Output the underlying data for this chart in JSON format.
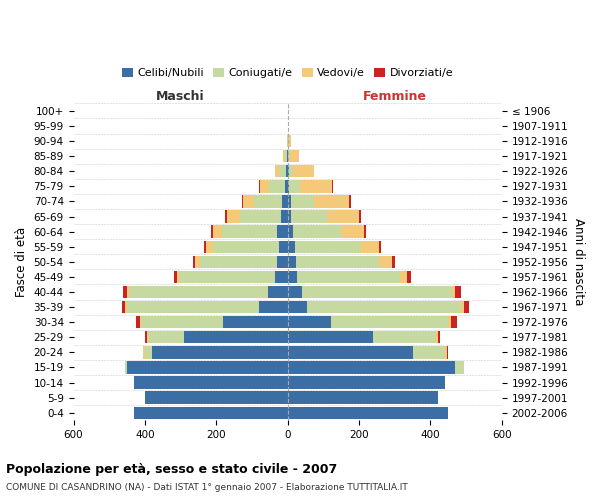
{
  "age_groups": [
    "0-4",
    "5-9",
    "10-14",
    "15-19",
    "20-24",
    "25-29",
    "30-34",
    "35-39",
    "40-44",
    "45-49",
    "50-54",
    "55-59",
    "60-64",
    "65-69",
    "70-74",
    "75-79",
    "80-84",
    "85-89",
    "90-94",
    "95-99",
    "100+"
  ],
  "birth_years": [
    "2002-2006",
    "1997-2001",
    "1992-1996",
    "1987-1991",
    "1982-1986",
    "1977-1981",
    "1972-1976",
    "1967-1971",
    "1962-1966",
    "1957-1961",
    "1952-1956",
    "1947-1951",
    "1942-1946",
    "1937-1941",
    "1932-1936",
    "1927-1931",
    "1922-1926",
    "1917-1921",
    "1912-1916",
    "1907-1911",
    "≤ 1906"
  ],
  "colors": {
    "celibe": "#3a6ea5",
    "coniugato": "#c5d9a0",
    "vedovo": "#f5c97a",
    "divorziato": "#cc2222"
  },
  "maschi": {
    "celibe": [
      430,
      400,
      430,
      450,
      380,
      290,
      180,
      80,
      55,
      35,
      30,
      25,
      30,
      20,
      15,
      8,
      5,
      2,
      0,
      0,
      0
    ],
    "coniugato": [
      0,
      0,
      0,
      5,
      20,
      100,
      230,
      370,
      390,
      270,
      215,
      185,
      155,
      115,
      80,
      45,
      18,
      5,
      2,
      0,
      0
    ],
    "vedovo": [
      0,
      0,
      0,
      0,
      5,
      5,
      5,
      5,
      5,
      5,
      15,
      20,
      25,
      35,
      30,
      25,
      12,
      5,
      1,
      0,
      0
    ],
    "divorziato": [
      0,
      0,
      0,
      0,
      0,
      5,
      10,
      10,
      10,
      8,
      5,
      5,
      5,
      5,
      3,
      2,
      0,
      0,
      0,
      0,
      0
    ]
  },
  "femmine": {
    "nubile": [
      450,
      420,
      440,
      470,
      350,
      240,
      120,
      55,
      40,
      25,
      22,
      20,
      15,
      10,
      8,
      5,
      3,
      2,
      0,
      0,
      0
    ],
    "coniugata": [
      0,
      0,
      0,
      25,
      90,
      175,
      330,
      430,
      420,
      290,
      235,
      185,
      135,
      100,
      65,
      30,
      12,
      5,
      2,
      0,
      0
    ],
    "vedova": [
      0,
      0,
      0,
      0,
      5,
      5,
      8,
      8,
      10,
      20,
      35,
      50,
      65,
      90,
      100,
      90,
      60,
      25,
      8,
      2,
      0
    ],
    "divorziata": [
      0,
      0,
      0,
      0,
      5,
      8,
      15,
      15,
      15,
      10,
      8,
      5,
      5,
      5,
      3,
      2,
      0,
      0,
      0,
      0,
      0
    ]
  },
  "title": "Popolazione per età, sesso e stato civile - 2007",
  "subtitle": "COMUNE DI CASANDRINO (NA) - Dati ISTAT 1° gennaio 2007 - Elaborazione TUTTITALIA.IT",
  "xlabel_maschi": "Maschi",
  "xlabel_femmine": "Femmine",
  "ylabel": "Fasce di età",
  "ylabel_right": "Anni di nascita",
  "xlim": 600,
  "legend_labels": [
    "Celibi/Nubili",
    "Coniugati/e",
    "Vedovi/e",
    "Divorziati/e"
  ]
}
